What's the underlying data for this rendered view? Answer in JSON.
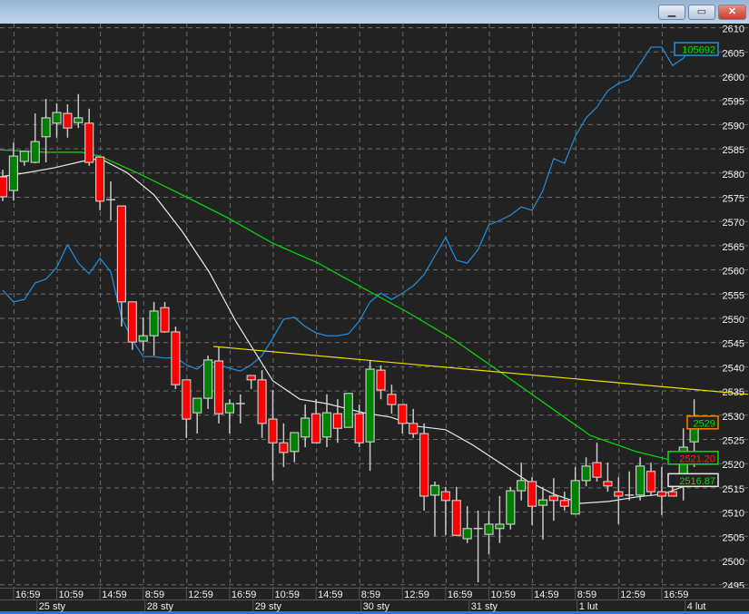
{
  "window": {
    "minimize_icon": "minimize-icon",
    "restore_icon": "restore-icon",
    "close_icon": "close-icon"
  },
  "chart_data": {
    "type": "candlestick",
    "title": "",
    "y_ticks": [
      2610,
      2605,
      2600,
      2595,
      2590,
      2585,
      2580,
      2575,
      2570,
      2565,
      2560,
      2555,
      2550,
      2545,
      2540,
      2535,
      2530,
      2525,
      2520,
      2515,
      2510,
      2505,
      2500,
      2495
    ],
    "ylim": [
      2494,
      2611
    ],
    "time_labels": [
      {
        "i": 1,
        "t": "16:59"
      },
      {
        "i": 5,
        "t": "10:59"
      },
      {
        "i": 9,
        "t": "14:59"
      },
      {
        "i": 13,
        "t": "8:59"
      },
      {
        "i": 17,
        "t": "12:59"
      },
      {
        "i": 21,
        "t": "16:59"
      },
      {
        "i": 25,
        "t": "10:59"
      },
      {
        "i": 29,
        "t": "14:59"
      },
      {
        "i": 33,
        "t": "8:59"
      },
      {
        "i": 37,
        "t": "12:59"
      },
      {
        "i": 41,
        "t": "16:59"
      },
      {
        "i": 45,
        "t": "10:59"
      },
      {
        "i": 49,
        "t": "14:59"
      },
      {
        "i": 53,
        "t": "8:59"
      },
      {
        "i": 57,
        "t": "12:59"
      },
      {
        "i": 61,
        "t": "16:59"
      }
    ],
    "date_labels": [
      {
        "i": 3,
        "t": "25 sty"
      },
      {
        "i": 13,
        "t": "28 sty"
      },
      {
        "i": 23,
        "t": "29 sty"
      },
      {
        "i": 33,
        "t": "30 sty"
      },
      {
        "i": 43,
        "t": "31 sty"
      },
      {
        "i": 53,
        "t": "1 lut"
      },
      {
        "i": 63,
        "t": "4 lut"
      }
    ],
    "candles": [
      [
        2579.2,
        2580.7,
        2574.2,
        2575.1
      ],
      [
        2576.4,
        2586.3,
        2574.3,
        2583.5
      ],
      [
        2582.4,
        2584.5,
        2581.5,
        2584.5
      ],
      [
        2582.2,
        2592.3,
        2582,
        2586.5
      ],
      [
        2587.5,
        2595.3,
        2582.2,
        2591.4
      ],
      [
        2590.3,
        2594.4,
        2587.3,
        2592.5
      ],
      [
        2592.3,
        2594.2,
        2587.3,
        2589.3
      ],
      [
        2590.4,
        2596.3,
        2589.3,
        2591.4
      ],
      [
        2590.3,
        2593.3,
        2581.5,
        2582.2
      ],
      [
        2583.3,
        2583.3,
        2572.3,
        2574.2
      ],
      [
        2574.5,
        2578.3,
        2570.2,
        2574.5
      ],
      [
        2573.2,
        2573.2,
        2548.3,
        2553.4
      ],
      [
        2553.4,
        2553.4,
        2543.5,
        2545.1
      ],
      [
        2545.3,
        2550.2,
        2543.3,
        2546.4
      ],
      [
        2546.4,
        2553.4,
        2542.3,
        2551.5
      ],
      [
        2552.2,
        2553.4,
        2547,
        2547.2
      ],
      [
        2547.2,
        2548.3,
        2535.4,
        2536.3
      ],
      [
        2537.3,
        2537.3,
        2525.3,
        2529.2
      ],
      [
        2530.5,
        2533.5,
        2526.2,
        2533.5
      ],
      [
        2533.5,
        2542.3,
        2531.3,
        2541.4
      ],
      [
        2541.2,
        2544,
        2528.3,
        2530.3
      ],
      [
        2530.5,
        2533.3,
        2526.2,
        2532.4
      ],
      [
        2532.4,
        2534.3,
        2528.3,
        2532.4
      ],
      [
        2538.2,
        2538.2,
        2535.4,
        2537.3
      ],
      [
        2537.3,
        2539.3,
        2525.3,
        2528.3
      ],
      [
        2529.2,
        2535.2,
        2516.5,
        2524.3
      ],
      [
        2524.3,
        2528.3,
        2519.3,
        2522.3
      ],
      [
        2522.5,
        2526.4,
        2520.3,
        2526.4
      ],
      [
        2525.5,
        2532.2,
        2523.4,
        2529.4
      ],
      [
        2530.3,
        2533.3,
        2524.3,
        2524.3
      ],
      [
        2525.5,
        2534.3,
        2523.4,
        2530.5
      ],
      [
        2530.3,
        2533.3,
        2524.3,
        2527.3
      ],
      [
        2527.5,
        2534.5,
        2527.5,
        2534.5
      ],
      [
        2530.3,
        2532.2,
        2523.4,
        2524.3
      ],
      [
        2524.5,
        2541.4,
        2518.5,
        2539.5
      ],
      [
        2539.3,
        2540.3,
        2533.3,
        2535.2
      ],
      [
        2534.3,
        2536.3,
        2530.3,
        2532.2
      ],
      [
        2532.2,
        2532.2,
        2526.2,
        2528.3
      ],
      [
        2528.3,
        2531.3,
        2525.3,
        2526.2
      ],
      [
        2526.2,
        2528.3,
        2510.3,
        2513.3
      ],
      [
        2513.5,
        2516.3,
        2505,
        2515.5
      ],
      [
        2514.2,
        2515.2,
        2505.2,
        2512.4
      ],
      [
        2512.4,
        2515.2,
        2505,
        2505.2
      ],
      [
        2504.5,
        2511.2,
        2503.6,
        2506.6
      ],
      [
        2506.6,
        2510.3,
        2495.5,
        2506.6
      ],
      [
        2505.4,
        2510.3,
        2501.3,
        2507.5
      ],
      [
        2506.6,
        2513.3,
        2503.6,
        2507.5
      ],
      [
        2507.5,
        2515.2,
        2506.4,
        2514.4
      ],
      [
        2514.4,
        2520.2,
        2512.4,
        2516.5
      ],
      [
        2516.3,
        2517.2,
        2507.3,
        2511.2
      ],
      [
        2511.4,
        2515.2,
        2504.3,
        2512.5
      ],
      [
        2513.3,
        2517,
        2508.2,
        2512.4
      ],
      [
        2512.4,
        2514.2,
        2510.3,
        2511.2
      ],
      [
        2509.6,
        2519.3,
        2509.6,
        2516.5
      ],
      [
        2516.5,
        2521.3,
        2515.3,
        2519.5
      ],
      [
        2520.2,
        2524.3,
        2516.3,
        2517.2
      ],
      [
        2516.3,
        2520.2,
        2514.2,
        2515.4
      ],
      [
        2514.2,
        2517.2,
        2507.5,
        2513.3
      ],
      [
        2513.5,
        2518.4,
        2512.4,
        2513.5
      ],
      [
        2513.5,
        2521.3,
        2512.4,
        2519.5
      ],
      [
        2518.4,
        2520.2,
        2513.3,
        2514.2
      ],
      [
        2514.2,
        2519.3,
        2509.4,
        2513.3
      ],
      [
        2514.2,
        2516.3,
        2513.3,
        2513.3
      ],
      [
        2515.5,
        2527.3,
        2512.4,
        2523.4
      ],
      [
        2524.5,
        2533.3,
        2519.3,
        2528.5
      ]
    ],
    "series": [
      {
        "name": "blue-indicator",
        "color": "#1e90e0",
        "values": [
          2555.8,
          2553.4,
          2553.9,
          2557.3,
          2558.1,
          2560.5,
          2565.2,
          2561.4,
          2559.2,
          2562.4,
          2559.6,
          2550.2,
          2545.5,
          2542.1,
          2542.1,
          2541.8,
          2541.9,
          2540.4,
          2539.5,
          2541.4,
          2540.4,
          2539.7,
          2539.1,
          2540.4,
          2542.3,
          2545.9,
          2549.8,
          2550.2,
          2548.3,
          2547,
          2546.4,
          2546.4,
          2546.8,
          2549.4,
          2553.4,
          2555.2,
          2553.9,
          2555.2,
          2556.7,
          2559,
          2562.9,
          2566.7,
          2562,
          2561.4,
          2564.2,
          2569.3,
          2570.2,
          2571.3,
          2573,
          2572.3,
          2576.4,
          2583,
          2582,
          2587.6,
          2591.4,
          2593.6,
          2597,
          2598.5,
          2599.3,
          2602.6,
          2606,
          2606,
          2602.2,
          2603.7,
          2606.7
        ]
      },
      {
        "name": "slow-ma",
        "color": "#00e000",
        "points": [
          [
            -0.3,
            2584.8
          ],
          [
            4,
            2584.3
          ],
          [
            7.3,
            2584.3
          ],
          [
            9,
            2583.5
          ],
          [
            12.4,
            2580.1
          ],
          [
            16.6,
            2575.5
          ],
          [
            20.8,
            2570.8
          ],
          [
            25,
            2565.5
          ],
          [
            29.2,
            2561.4
          ],
          [
            33.4,
            2556.2
          ],
          [
            37.6,
            2551.1
          ],
          [
            41.8,
            2545.5
          ],
          [
            46,
            2539
          ],
          [
            50.2,
            2532.4
          ],
          [
            54.4,
            2525.8
          ],
          [
            58.6,
            2522.5
          ],
          [
            62.8,
            2520.2
          ],
          [
            64,
            2519.9
          ]
        ]
      },
      {
        "name": "fast-ma",
        "color": "#e8e8e8",
        "points": [
          [
            -0.3,
            2579.2
          ],
          [
            2.3,
            2580.1
          ],
          [
            4.8,
            2581.1
          ],
          [
            7.3,
            2582.4
          ],
          [
            9,
            2583
          ],
          [
            11.5,
            2580.1
          ],
          [
            14,
            2575.5
          ],
          [
            16.6,
            2568
          ],
          [
            19.1,
            2559.6
          ],
          [
            21.6,
            2549.3
          ],
          [
            25,
            2537.1
          ],
          [
            27.5,
            2533.3
          ],
          [
            30,
            2532.4
          ],
          [
            33.4,
            2530.5
          ],
          [
            35.9,
            2529.6
          ],
          [
            38.4,
            2527.7
          ],
          [
            41,
            2527
          ],
          [
            43.4,
            2524
          ],
          [
            46,
            2520.2
          ],
          [
            48.5,
            2516.5
          ],
          [
            51,
            2513.7
          ],
          [
            53.5,
            2511.8
          ],
          [
            56.1,
            2512.2
          ],
          [
            58.6,
            2513.1
          ],
          [
            61.1,
            2513.7
          ],
          [
            64,
            2516.1
          ]
        ]
      },
      {
        "name": "trendline",
        "color": "#f0e000",
        "points": [
          [
            19.5,
            2544.2
          ],
          [
            69,
            2534.3
          ]
        ]
      }
    ],
    "value_markers": [
      {
        "label": "105692",
        "value": 2605.6,
        "text_color": "#00e000",
        "border": "#1e90e0"
      },
      {
        "label": "2529",
        "value": 2528.5,
        "text_color": "#00e000",
        "border": "#ff8000"
      },
      {
        "label": "2521.20",
        "value": 2521.2,
        "text_color": "#ff2020",
        "border": "#00e000"
      },
      {
        "label": "2516.87",
        "value": 2516.6,
        "text_color": "#00e000",
        "border": "#e8e8e8"
      }
    ]
  }
}
